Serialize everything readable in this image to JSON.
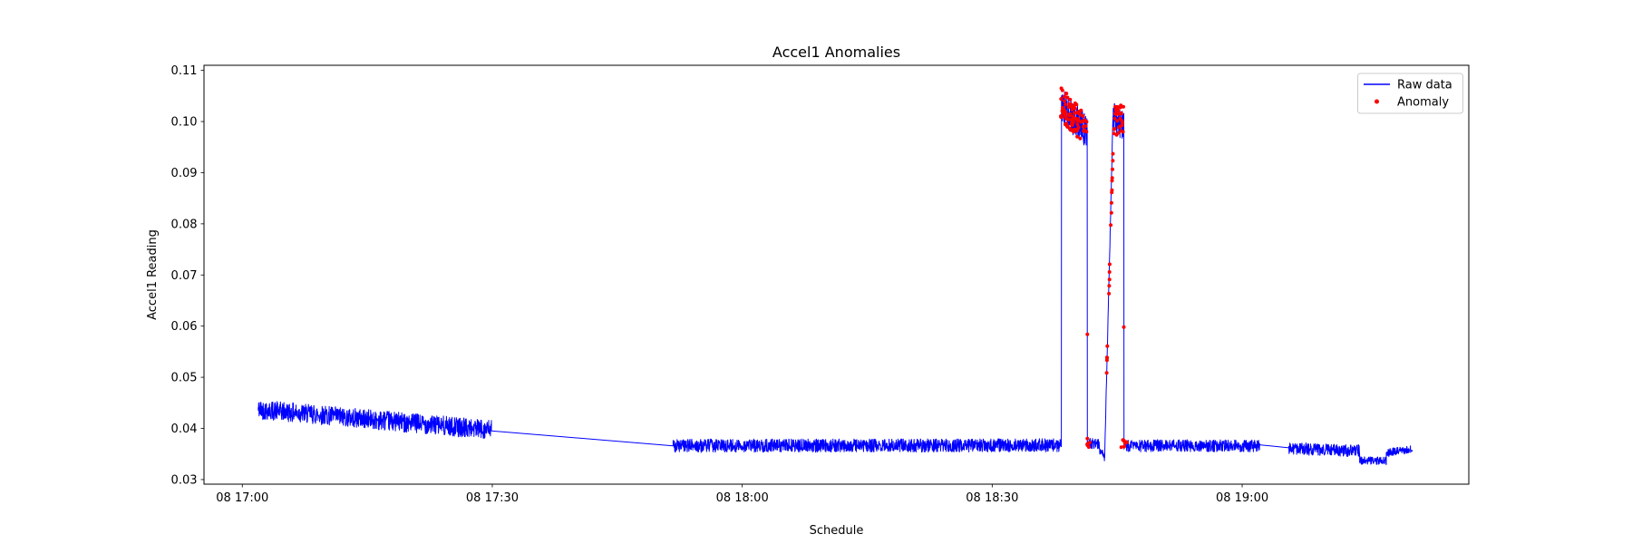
{
  "chart_data": {
    "type": "line",
    "title": "Accel1 Anomalies",
    "xlabel": "Schedule",
    "ylabel": "Accel1 Reading",
    "x_axis_note": "time axis labeled as day-hour:minute; minutes measured relative to 08 17:00",
    "xlim_minutes": [
      -4.6,
      147.2
    ],
    "ylim": [
      0.0291,
      0.111
    ],
    "grid": false,
    "colors": {
      "raw": "#0000ff",
      "anomaly": "#ff0000",
      "spine": "#000000",
      "legend_border": "#cccccc"
    },
    "x_ticks": [
      {
        "minutes": 0,
        "label": "08 17:00"
      },
      {
        "minutes": 30,
        "label": "08 17:30"
      },
      {
        "minutes": 60,
        "label": "08 18:00"
      },
      {
        "minutes": 90,
        "label": "08 18:30"
      },
      {
        "minutes": 120,
        "label": "08 19:00"
      }
    ],
    "y_ticks": [
      {
        "value": 0.03,
        "label": "0.03"
      },
      {
        "value": 0.04,
        "label": "0.04"
      },
      {
        "value": 0.05,
        "label": "0.05"
      },
      {
        "value": 0.06,
        "label": "0.06"
      },
      {
        "value": 0.07,
        "label": "0.07"
      },
      {
        "value": 0.08,
        "label": "0.08"
      },
      {
        "value": 0.09,
        "label": "0.09"
      },
      {
        "value": 0.1,
        "label": "0.10"
      },
      {
        "value": 0.11,
        "label": "0.11"
      }
    ],
    "legend": {
      "position": "upper right",
      "items": [
        {
          "label": "Raw data",
          "color": "#0000ff",
          "marker": "line"
        },
        {
          "label": "Anomaly",
          "color": "#ff0000",
          "marker": "dot"
        }
      ]
    },
    "noise_seed": 42,
    "series": [
      {
        "name": "Raw data",
        "color": "#0000ff",
        "style": "line",
        "segments": [
          {
            "type": "noisy",
            "t0": 1.9,
            "t1": 29.9,
            "v0": 0.0437,
            "v1": 0.0397,
            "amp": 0.0019
          },
          {
            "type": "line",
            "t0": 29.9,
            "t1": 51.7,
            "v0": 0.0395,
            "v1": 0.0366
          },
          {
            "type": "noisy",
            "t0": 51.7,
            "t1": 98.3,
            "v0": 0.0366,
            "v1": 0.0367,
            "amp": 0.0013
          },
          {
            "type": "line",
            "t0": 98.3,
            "t1": 98.32,
            "v0": 0.037,
            "v1": 0.105
          },
          {
            "type": "noisy",
            "t0": 98.32,
            "t1": 101.4,
            "v0": 0.1032,
            "v1": 0.0978,
            "amp": 0.0034
          },
          {
            "type": "line",
            "t0": 101.4,
            "t1": 101.42,
            "v0": 0.0978,
            "v1": 0.0374
          },
          {
            "type": "noisy",
            "t0": 101.42,
            "t1": 102.9,
            "v0": 0.0372,
            "v1": 0.0368,
            "amp": 0.001
          },
          {
            "type": "noisy",
            "t0": 102.9,
            "t1": 103.5,
            "v0": 0.0358,
            "v1": 0.0343,
            "amp": 0.0009
          },
          {
            "type": "noisy",
            "t0": 103.5,
            "t1": 104.5,
            "v0": 0.0345,
            "v1": 0.1013,
            "amp": 0.0006
          },
          {
            "type": "noisy",
            "t0": 104.5,
            "t1": 105.8,
            "v0": 0.1006,
            "v1": 0.0996,
            "amp": 0.0031
          },
          {
            "type": "line",
            "t0": 105.8,
            "t1": 105.82,
            "v0": 0.0996,
            "v1": 0.037
          },
          {
            "type": "noisy",
            "t0": 105.82,
            "t1": 122.1,
            "v0": 0.0366,
            "v1": 0.0366,
            "amp": 0.0012
          },
          {
            "type": "line",
            "t0": 122.1,
            "t1": 125.6,
            "v0": 0.0368,
            "v1": 0.0362
          },
          {
            "type": "noisy",
            "t0": 125.6,
            "t1": 134.1,
            "v0": 0.0361,
            "v1": 0.0356,
            "amp": 0.0012
          },
          {
            "type": "noisy",
            "t0": 134.1,
            "t1": 137.3,
            "v0": 0.0337,
            "v1": 0.0336,
            "amp": 0.0008
          },
          {
            "type": "noisy",
            "t0": 137.3,
            "t1": 140.4,
            "v0": 0.0352,
            "v1": 0.0359,
            "amp": 0.0008
          }
        ]
      },
      {
        "name": "Anomaly",
        "color": "#ff0000",
        "style": "points",
        "groups": [
          {
            "region": "first-plateau",
            "t0": 98.2,
            "t1": 101.35,
            "v_start": 0.1038,
            "v_end": 0.0976,
            "spread": 0.0034,
            "count": 85
          },
          {
            "region": "first-drop-bottom",
            "t0": 101.35,
            "t1": 101.8,
            "v_start": 0.0372,
            "v_end": 0.0372,
            "spread": 0.0009,
            "count": 6
          },
          {
            "region": "second-rise",
            "t0": 103.72,
            "t1": 104.5,
            "v_start": 0.0505,
            "v_end": 0.094,
            "spread": 0.001,
            "count": 20
          },
          {
            "region": "second-plateau",
            "t0": 104.5,
            "t1": 105.82,
            "v_start": 0.1004,
            "v_end": 0.0998,
            "spread": 0.0032,
            "count": 30
          },
          {
            "region": "second-drop-bottom",
            "t0": 105.45,
            "t1": 106.2,
            "v_start": 0.0371,
            "v_end": 0.0371,
            "spread": 0.0008,
            "count": 6
          }
        ],
        "isolated_points": [
          [
            101.42,
            0.0584
          ],
          [
            105.8,
            0.0598
          ]
        ]
      }
    ]
  }
}
